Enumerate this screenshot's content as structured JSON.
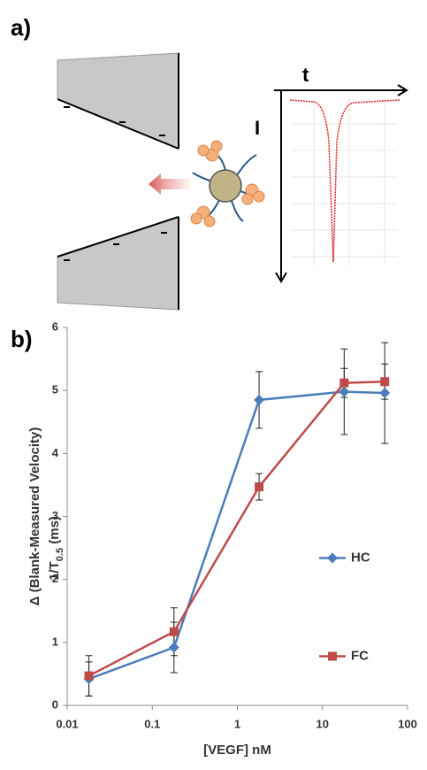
{
  "panel_labels": [
    "a)",
    "b)"
  ],
  "diagram": {
    "time_label": "t",
    "current_label": "I"
  },
  "chart_data": {
    "type": "line",
    "x_label": "[VEGF] nM",
    "y_label": [
      "Δ (Blank-Measured Velocity)",
      "1/T",
      "0.5",
      " (ms)"
    ],
    "x": [
      0.018,
      0.18,
      1.8,
      18,
      54
    ],
    "series": [
      {
        "name": "HC",
        "color": "#4a7ebb",
        "marker": "diamond",
        "values": [
          0.42,
          0.92,
          4.85,
          4.98,
          4.96
        ],
        "errors": [
          0.27,
          0.4,
          0.45,
          0.68,
          0.8
        ]
      },
      {
        "name": "FC",
        "color": "#be4b48",
        "marker": "square",
        "values": [
          0.47,
          1.17,
          3.47,
          5.12,
          5.14
        ],
        "errors": [
          0.32,
          0.38,
          0.21,
          0.23,
          0.28
        ]
      }
    ],
    "xlim": [
      0.01,
      100
    ],
    "xticks": [
      0.01,
      0.1,
      1,
      10,
      100
    ],
    "xscale": "log",
    "ylim": [
      0,
      6
    ],
    "yticks": [
      0,
      1,
      2,
      3,
      4,
      5,
      6
    ],
    "legend_position": "right"
  }
}
